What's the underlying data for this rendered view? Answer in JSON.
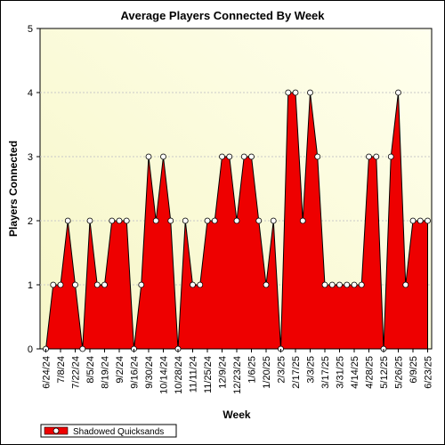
{
  "chart_data": {
    "type": "area",
    "title": "Average Players Connected By Week",
    "xlabel": "Week",
    "ylabel": "Players Connected",
    "ylim": [
      0,
      5
    ],
    "yticks": [
      0,
      1,
      2,
      3,
      4,
      5
    ],
    "grid": true,
    "legend": "bottom-left",
    "x_tick_labels": [
      "6/24/24",
      "7/8/24",
      "7/22/24",
      "8/5/24",
      "8/19/24",
      "9/2/24",
      "9/16/24",
      "9/30/24",
      "10/14/24",
      "10/28/24",
      "11/11/24",
      "11/25/24",
      "12/9/24",
      "12/23/24",
      "1/6/25",
      "1/20/25",
      "2/3/25",
      "2/17/25",
      "3/3/25",
      "3/17/25",
      "3/31/25",
      "4/14/25",
      "4/28/25",
      "5/12/25",
      "5/26/25",
      "6/9/25",
      "6/23/25"
    ],
    "series": [
      {
        "name": "Shadowed Quicksands",
        "color": "#ee0000",
        "values": [
          0,
          1,
          1,
          2,
          1,
          0,
          2,
          1,
          1,
          2,
          2,
          2,
          0,
          1,
          3,
          2,
          3,
          2,
          0,
          2,
          1,
          1,
          2,
          2,
          3,
          3,
          2,
          3,
          3,
          2,
          1,
          2,
          0,
          4,
          4,
          2,
          4,
          3,
          1,
          1,
          1,
          1,
          1,
          1,
          3,
          3,
          0,
          3,
          4,
          1,
          2,
          2,
          2
        ]
      }
    ]
  }
}
